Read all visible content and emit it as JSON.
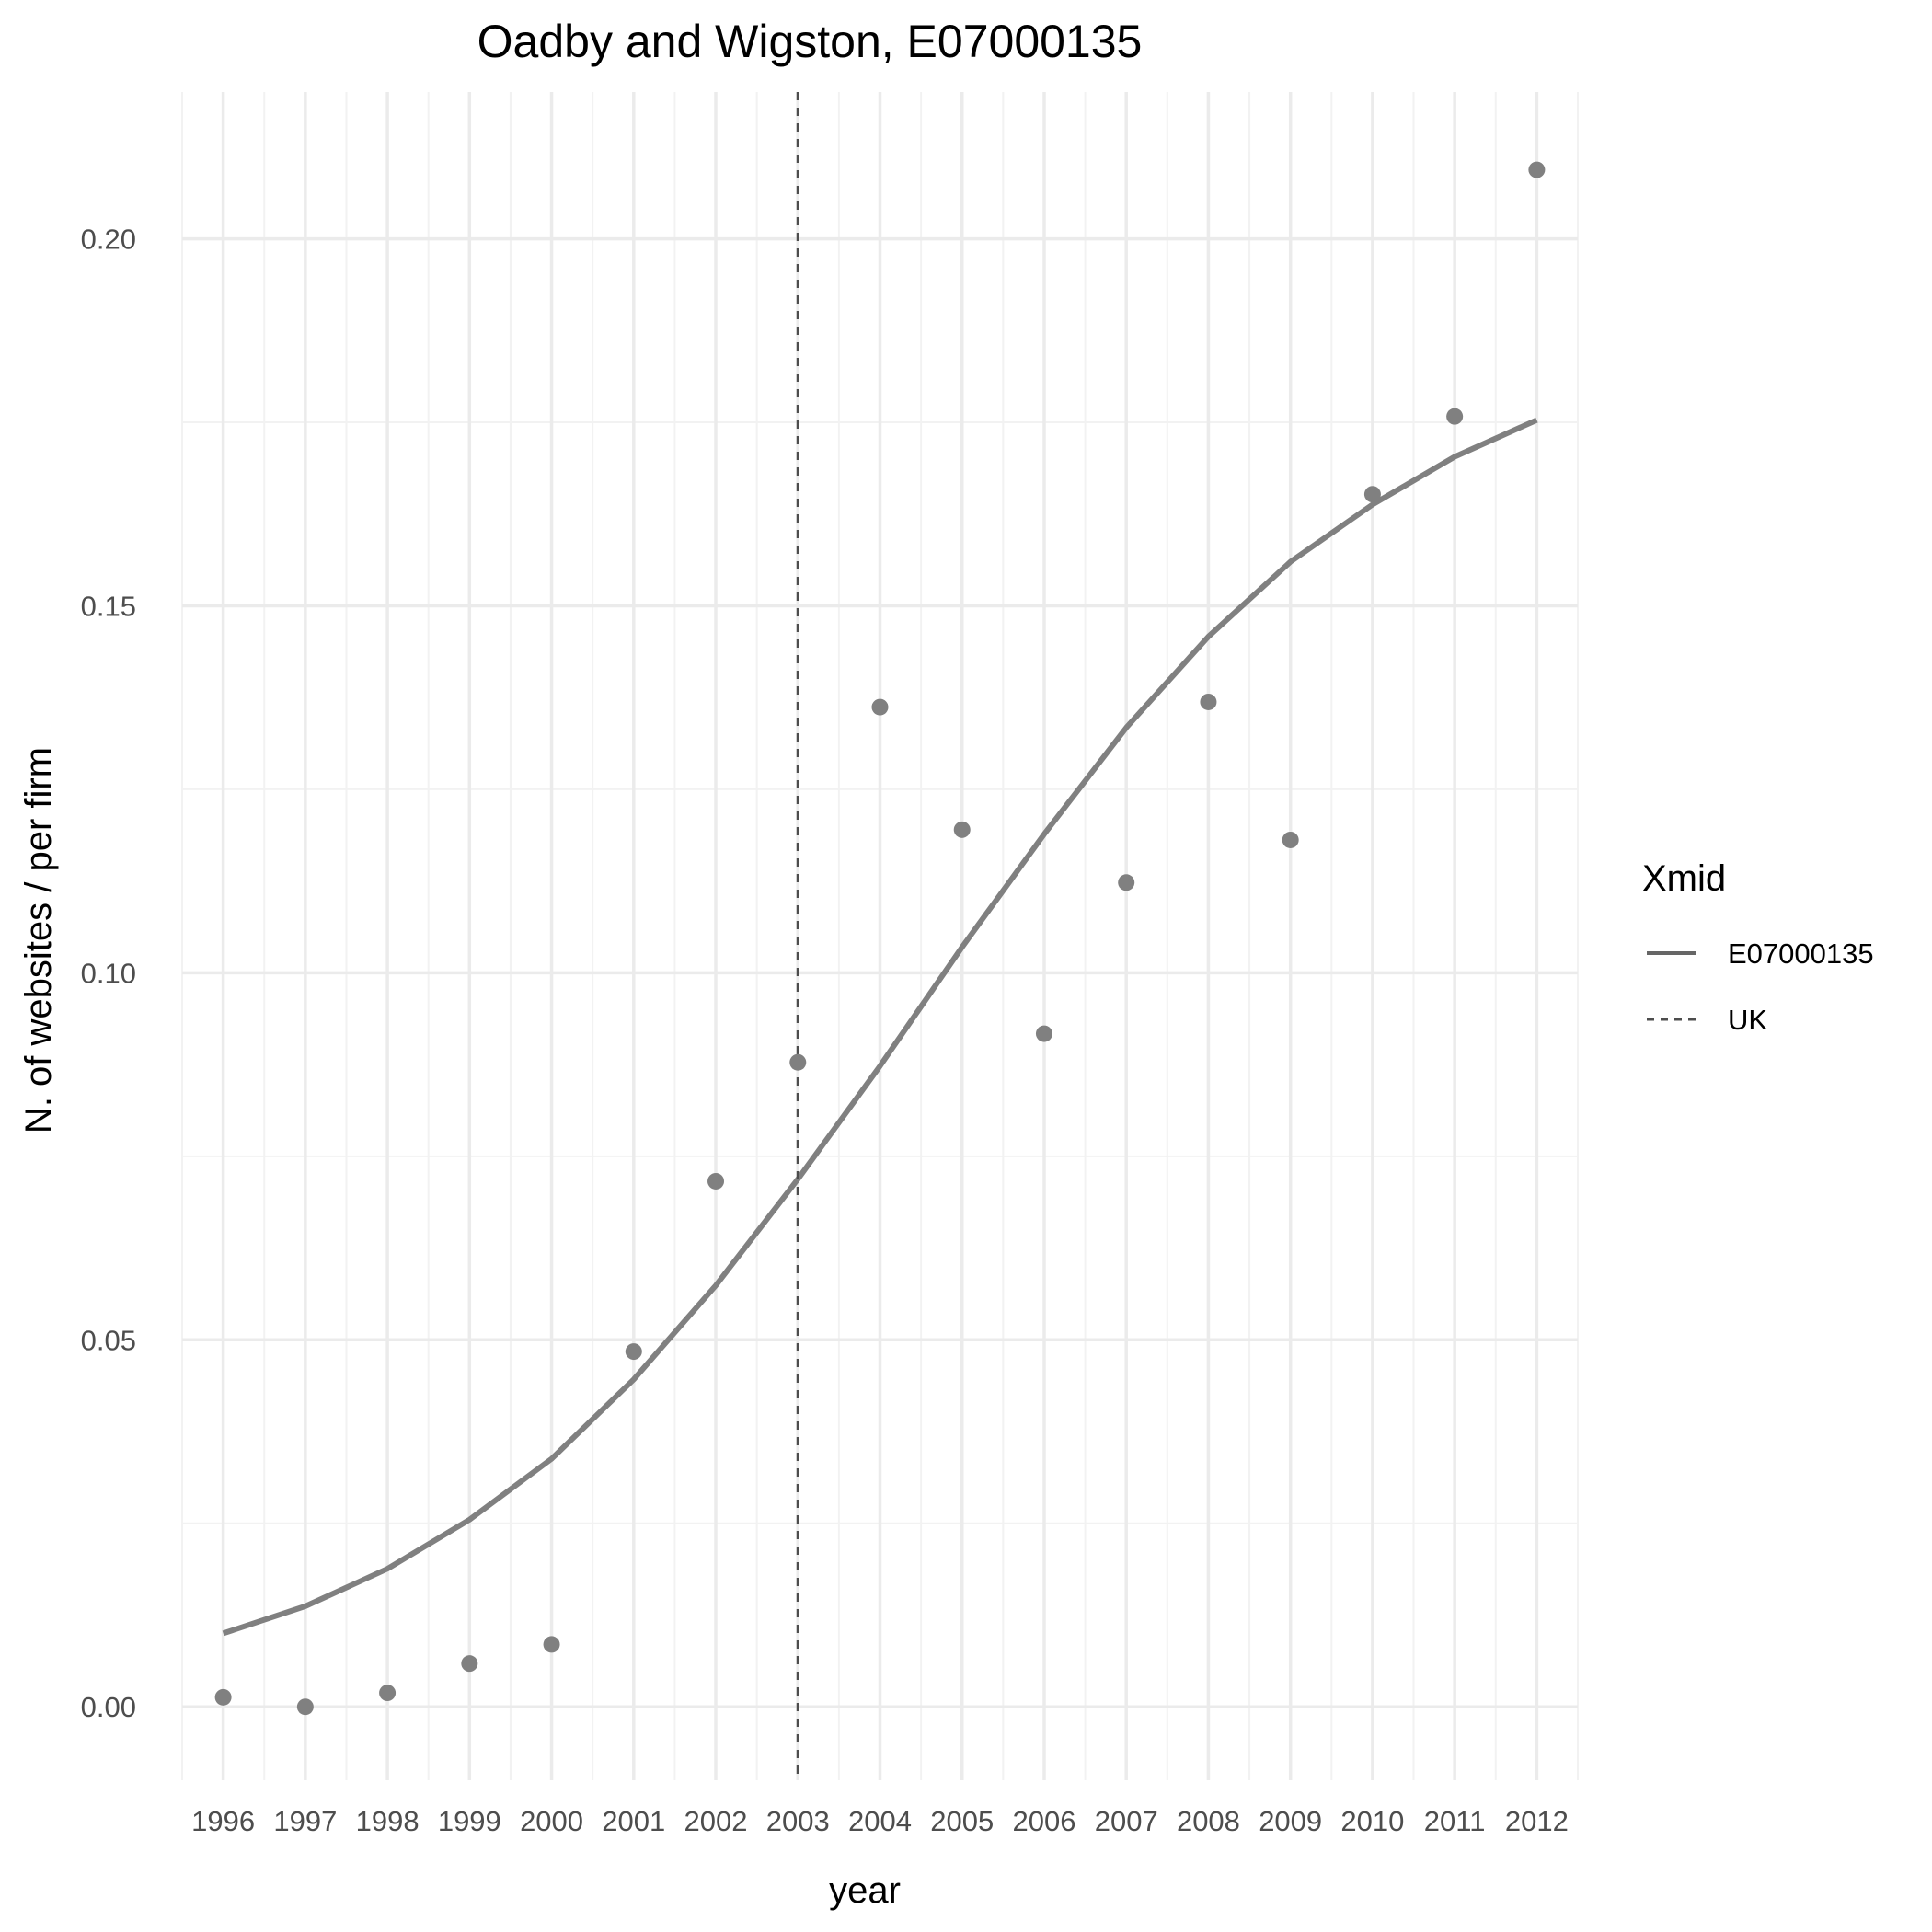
{
  "chart_data": {
    "type": "line",
    "title": "Oadby and Wigston, E07000135",
    "xlabel": "year",
    "ylabel": "N. of websites / per firm",
    "xlim": [
      1995.5,
      2012.5
    ],
    "ylim": [
      -0.01,
      0.22
    ],
    "categories": [
      "1996",
      "1997",
      "1998",
      "1999",
      "2000",
      "2001",
      "2002",
      "2003",
      "2004",
      "2005",
      "2006",
      "2007",
      "2008",
      "2009",
      "2010",
      "2011",
      "2012"
    ],
    "y_ticks": [
      "0.00",
      "0.05",
      "0.10",
      "0.15",
      "0.20"
    ],
    "y_tick_values": [
      0.0,
      0.05,
      0.1,
      0.15,
      0.2
    ],
    "series": [
      {
        "name": "E07000135",
        "kind": "line",
        "linetype": "solid",
        "color": "#808080",
        "x": [
          1996,
          1997,
          1998,
          1999,
          2000,
          2001,
          2002,
          2003,
          2004,
          2005,
          2006,
          2007,
          2008,
          2009,
          2010,
          2011,
          2012
        ],
        "values": [
          0.01,
          0.0137,
          0.0188,
          0.0255,
          0.0338,
          0.0446,
          0.0574,
          0.0719,
          0.0873,
          0.1035,
          0.1189,
          0.1334,
          0.1458,
          0.156,
          0.1638,
          0.1703,
          0.1753
        ]
      },
      {
        "kind": "points",
        "color": "#808080",
        "x": [
          1996,
          1997,
          1998,
          1999,
          2000,
          2001,
          2002,
          2003,
          2004,
          2005,
          2006,
          2007,
          2008,
          2009,
          2010,
          2011,
          2012
        ],
        "values": [
          0.0013,
          0.0,
          0.0019,
          0.0059,
          0.0085,
          0.0484,
          0.0716,
          0.0878,
          0.1362,
          0.1195,
          0.0917,
          0.1123,
          0.1369,
          0.1181,
          0.1652,
          0.1758,
          0.2094
        ]
      },
      {
        "name": "UK",
        "kind": "vline",
        "linetype": "dashed",
        "color": "#4d4d4d",
        "x": [
          2003
        ]
      }
    ],
    "grid": true,
    "legend": {
      "title": "Xmid",
      "placement": "right",
      "entries": [
        {
          "label": "E07000135",
          "linetype": "solid",
          "color": "#666666"
        },
        {
          "label": "UK",
          "linetype": "dashed",
          "color": "#4d4d4d"
        }
      ]
    }
  }
}
